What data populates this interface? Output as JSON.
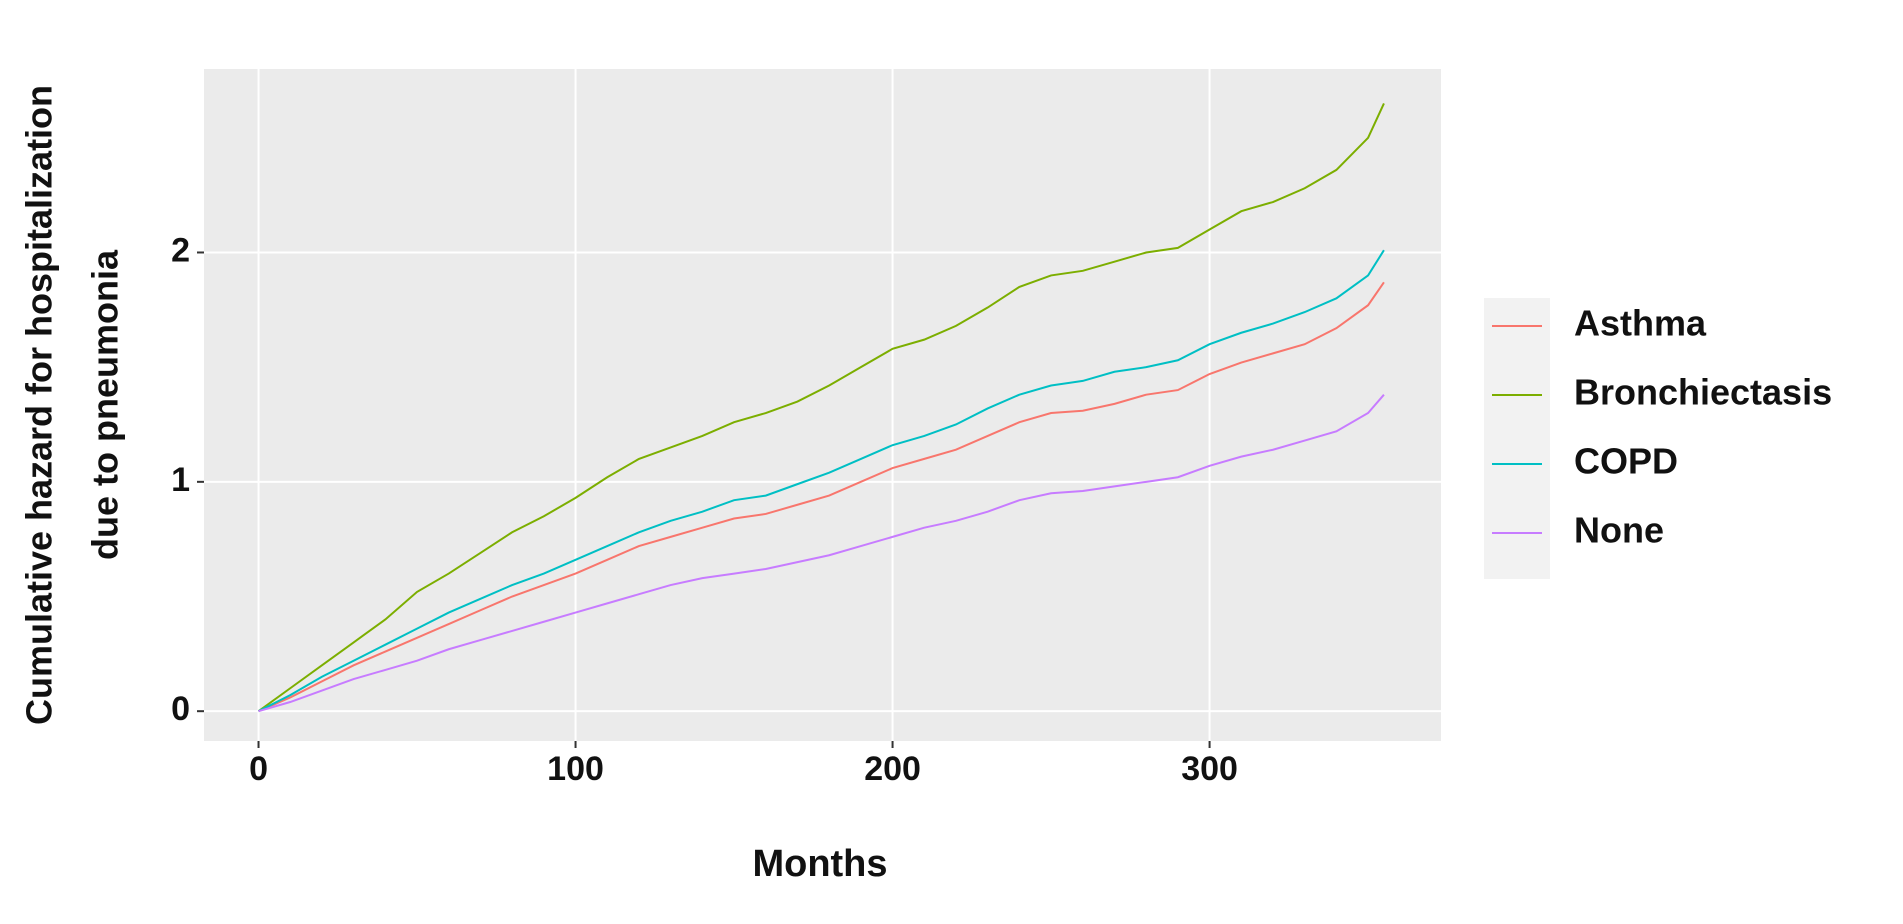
{
  "chart_data": {
    "type": "line",
    "x_label": "Months",
    "y_label": [
      "Cumulative hazard for hospitalization",
      "due to pneumonia"
    ],
    "x": [
      0,
      10,
      20,
      30,
      40,
      50,
      60,
      70,
      80,
      90,
      100,
      110,
      120,
      130,
      140,
      150,
      160,
      170,
      180,
      190,
      200,
      210,
      220,
      230,
      240,
      250,
      260,
      270,
      280,
      290,
      300,
      310,
      320,
      330,
      340,
      350,
      355
    ],
    "series": [
      {
        "name": "Asthma",
        "color": "#F8766D",
        "values": [
          0,
          0.06,
          0.13,
          0.2,
          0.26,
          0.32,
          0.38,
          0.44,
          0.5,
          0.55,
          0.6,
          0.66,
          0.72,
          0.76,
          0.8,
          0.84,
          0.86,
          0.9,
          0.94,
          1.0,
          1.06,
          1.1,
          1.14,
          1.2,
          1.26,
          1.3,
          1.31,
          1.34,
          1.38,
          1.4,
          1.47,
          1.52,
          1.56,
          1.6,
          1.67,
          1.77,
          1.87
        ]
      },
      {
        "name": "Bronchiectasis",
        "color": "#7CAE00",
        "values": [
          0,
          0.1,
          0.2,
          0.3,
          0.4,
          0.52,
          0.6,
          0.69,
          0.78,
          0.85,
          0.93,
          1.02,
          1.1,
          1.15,
          1.2,
          1.26,
          1.3,
          1.35,
          1.42,
          1.5,
          1.58,
          1.62,
          1.68,
          1.76,
          1.85,
          1.9,
          1.92,
          1.96,
          2.0,
          2.02,
          2.1,
          2.18,
          2.22,
          2.28,
          2.36,
          2.5,
          2.65
        ]
      },
      {
        "name": "COPD",
        "color": "#00BFC4",
        "values": [
          0,
          0.07,
          0.15,
          0.22,
          0.29,
          0.36,
          0.43,
          0.49,
          0.55,
          0.6,
          0.66,
          0.72,
          0.78,
          0.83,
          0.87,
          0.92,
          0.94,
          0.99,
          1.04,
          1.1,
          1.16,
          1.2,
          1.25,
          1.32,
          1.38,
          1.42,
          1.44,
          1.48,
          1.5,
          1.53,
          1.6,
          1.65,
          1.69,
          1.74,
          1.8,
          1.9,
          2.01
        ]
      },
      {
        "name": "None",
        "color": "#C77CFF",
        "values": [
          0,
          0.04,
          0.09,
          0.14,
          0.18,
          0.22,
          0.27,
          0.31,
          0.35,
          0.39,
          0.43,
          0.47,
          0.51,
          0.55,
          0.58,
          0.6,
          0.62,
          0.65,
          0.68,
          0.72,
          0.76,
          0.8,
          0.83,
          0.87,
          0.92,
          0.95,
          0.96,
          0.98,
          1.0,
          1.02,
          1.07,
          1.11,
          1.14,
          1.18,
          1.22,
          1.3,
          1.38
        ]
      }
    ],
    "xlim": [
      -17.2,
      373
    ],
    "xticks": [
      0,
      100,
      200,
      300
    ],
    "ylim": [
      -0.13,
      2.8
    ],
    "yticks": [
      0,
      1,
      2
    ],
    "grid": true,
    "panel_color": "#EBEBEB",
    "legend": "right"
  }
}
